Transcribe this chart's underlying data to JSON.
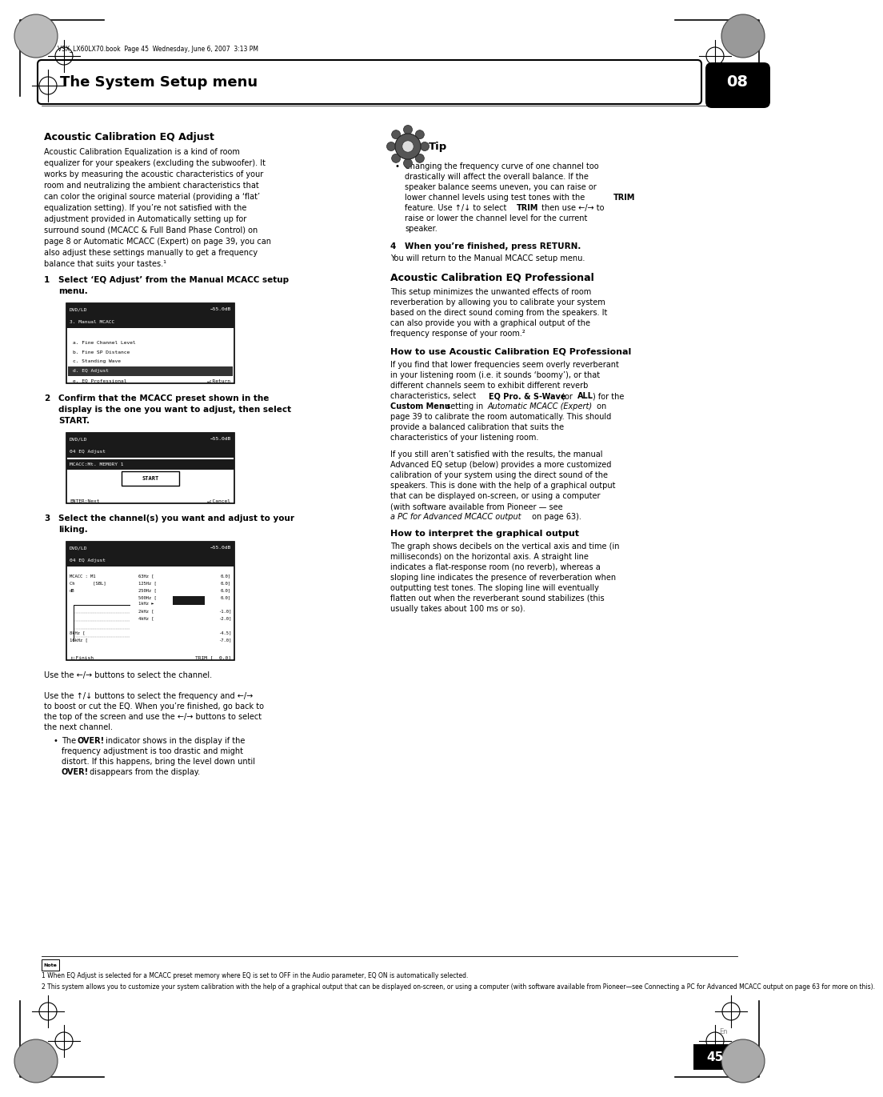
{
  "page_width": 9.54,
  "page_height": 13.51,
  "bg_color": "#ffffff",
  "header_text": "The System Setup menu",
  "header_number": "08",
  "file_info": "VSX_LX60LX70.book  Page 45  Wednesday, June 6, 2007  3:13 PM",
  "footer_page": "45",
  "footer_lang": "En",
  "section1_title": "Acoustic Calibration EQ Adjust",
  "step1_bold": "1    Select ‘EQ Adjust’ from the Manual MCACC setup\n     menu.",
  "step2_bold": "2    Confirm that the MCACC preset shown in the\n     display is the one you want to adjust, then select\n     START.",
  "step3_bold": "3    Select the channel(s) you want and adjust to your\n     liking.",
  "tip_title": "Tip",
  "step4_label": "4",
  "step4_bold": "When you’re finished, press RETURN.",
  "step4_body": "You will return to the Manual MCACC setup menu.",
  "section2_title": "Acoustic Calibration EQ Professional",
  "howto_title": "How to use Acoustic Calibration EQ Professional",
  "graph_title": "How to interpret the graphical output",
  "footnote1": "1 When EQ Adjust is selected for a MCACC preset memory where EQ is set to OFF in the Audio parameter, EQ ON is automatically selected.",
  "footnote2": "2 This system allows you to customize your system calibration with the help of a graphical output that can be displayed on-screen, or using a computer (with software available from Pioneer—see Connecting a PC for Advanced MCACC output on page 63 for more on this)."
}
